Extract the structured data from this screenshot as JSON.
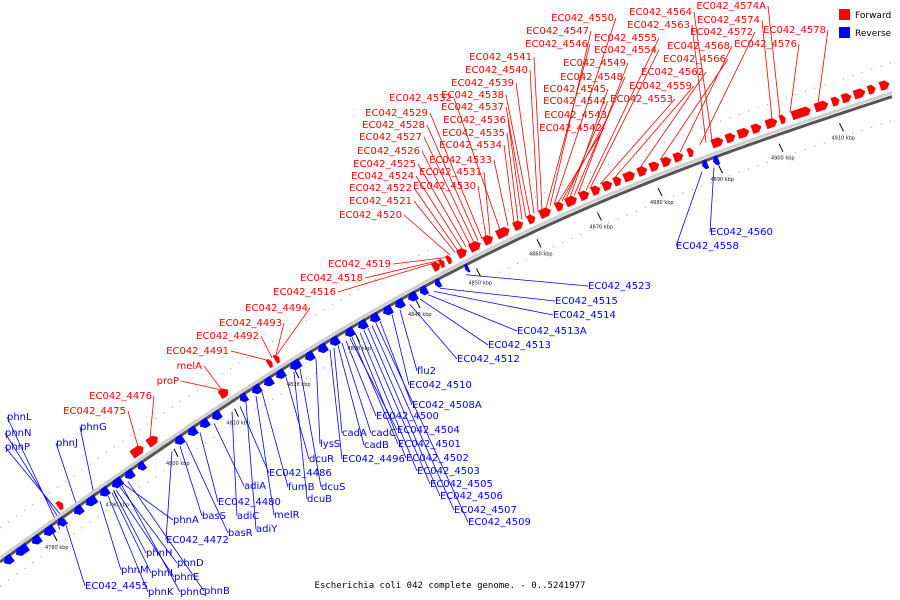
{
  "caption": "Escherichia coli 042 complete genome. - 0..5241977",
  "legend": [
    {
      "label": "Forward",
      "color": "#ff0000"
    },
    {
      "label": "Reverse",
      "color": "#0000ff"
    }
  ],
  "colors": {
    "forward": "#ff0000",
    "reverse": "#0000ff",
    "axis": "#888888"
  },
  "ticks": [
    "4780 kbp",
    "4790 kbp",
    "4800 kbp",
    "4810 kbp",
    "4820 kbp",
    "4830 kbp",
    "4840 kbp",
    "4850 kbp",
    "4860 kbp",
    "4870 kbp",
    "4880 kbp",
    "4890 kbp",
    "4900 kbp",
    "4910 kbp"
  ],
  "forward_labels": [
    "EC042_4475",
    "EC042_4476",
    "proP",
    "melA",
    "EC042_4491",
    "EC042_4492",
    "EC042_4493",
    "EC042_4494",
    "EC042_4516",
    "EC042_4518",
    "EC042_4519",
    "EC042_4520",
    "EC042_4521",
    "EC042_4522",
    "EC042_4524",
    "EC042_4525",
    "EC042_4526",
    "EC042_4527",
    "EC042_4528",
    "EC042_4529",
    "EC042_4532",
    "EC042_4530",
    "EC042_4531",
    "EC042_4533",
    "EC042_4534",
    "EC042_4535",
    "EC042_4536",
    "EC042_4537",
    "EC042_4538",
    "EC042_4539",
    "EC042_4540",
    "EC042_4541",
    "EC042_4546",
    "EC042_4547",
    "EC042_4550",
    "EC042_4542",
    "EC042_4543",
    "EC042_4544",
    "EC042_4545",
    "EC042_4548",
    "EC042_4549",
    "EC042_4555",
    "EC042_4554",
    "EC042_4553",
    "EC042_4559",
    "EC042_4562",
    "EC042_4566",
    "EC042_4568",
    "EC042_4572",
    "EC042_4563",
    "EC042_4564",
    "EC042_4574",
    "EC042_4574A",
    "EC042_4576",
    "EC042_4578"
  ],
  "reverse_labels": [
    "phnL",
    "phnN",
    "phnP",
    "phnJ",
    "phnG",
    "phnA",
    "phnH",
    "phnM",
    "phnI",
    "phnD",
    "phnK",
    "phnE",
    "phnC",
    "phnB",
    "EC042_4455",
    "basS",
    "basR",
    "EC042_4472",
    "EC042_4480",
    "adiA",
    "adiC",
    "adiY",
    "melR",
    "EC042_4486",
    "fumB",
    "dcuR",
    "dcuS",
    "dcuB",
    "lysS",
    "EC042_4496",
    "cadA",
    "cadB",
    "cadC",
    "EC042_4500",
    "EC042_4501",
    "EC042_4502",
    "EC042_4503",
    "EC042_4504",
    "EC042_4505",
    "EC042_4506",
    "EC042_4507",
    "EC042_4508A",
    "EC042_4509",
    "EC042_4510",
    "flu2",
    "EC042_4512",
    "EC042_4513",
    "EC042_4513A",
    "EC042_4514",
    "EC042_4515",
    "EC042_4523",
    "EC042_4558",
    "EC042_4560"
  ]
}
